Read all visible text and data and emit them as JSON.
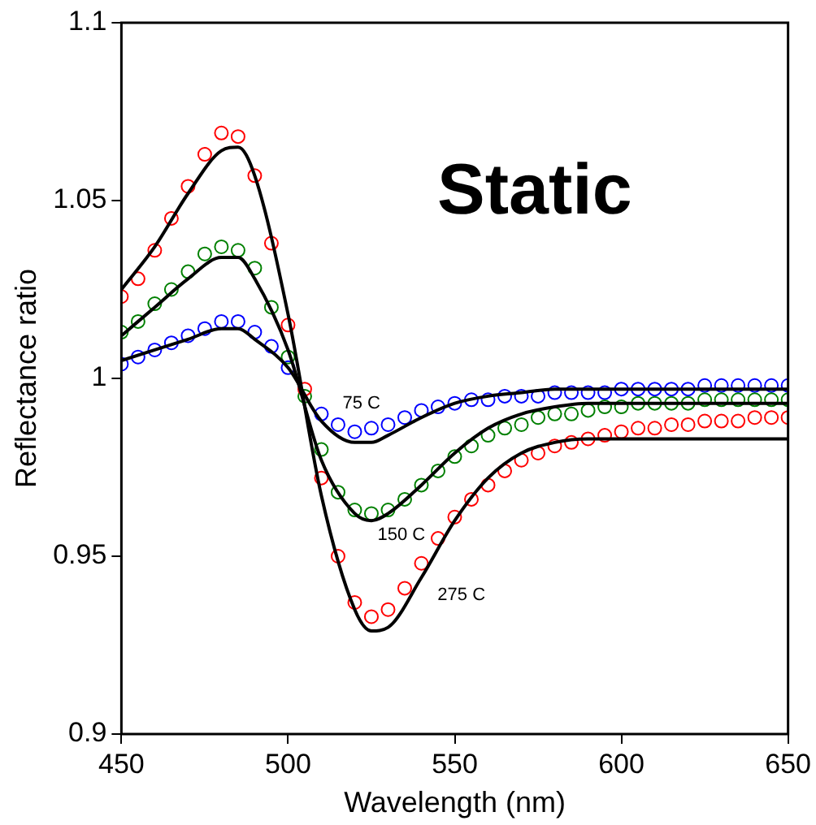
{
  "chart_data": {
    "type": "scatter",
    "xlabel": "Wavelength (nm)",
    "ylabel": "Reflectance ratio",
    "xlim": [
      450,
      650
    ],
    "xticks": [
      450,
      500,
      550,
      600,
      650
    ],
    "ylim": [
      0.9,
      1.1
    ],
    "yticks": [
      0.9,
      0.95,
      1,
      1.05,
      1.1
    ],
    "grid": false,
    "legend": false,
    "x": [
      450,
      455,
      460,
      465,
      470,
      475,
      480,
      485,
      490,
      495,
      500,
      505,
      510,
      515,
      520,
      525,
      530,
      535,
      540,
      545,
      550,
      555,
      560,
      565,
      570,
      575,
      580,
      585,
      590,
      595,
      600,
      605,
      610,
      615,
      620,
      625,
      630,
      635,
      640,
      645,
      650
    ],
    "series": [
      {
        "type": "scatter",
        "marker": "circle",
        "color": "#ff0000",
        "values": [
          1.023,
          1.028,
          1.036,
          1.045,
          1.054,
          1.063,
          1.069,
          1.068,
          1.057,
          1.038,
          1.015,
          0.997,
          0.972,
          0.95,
          0.937,
          0.933,
          0.935,
          0.941,
          0.948,
          0.955,
          0.961,
          0.966,
          0.97,
          0.974,
          0.977,
          0.979,
          0.981,
          0.982,
          0.983,
          0.984,
          0.985,
          0.986,
          0.986,
          0.987,
          0.987,
          0.988,
          0.988,
          0.988,
          0.989,
          0.989,
          0.989
        ]
      },
      {
        "type": "scatter",
        "marker": "circle",
        "color": "#008000",
        "values": [
          1.013,
          1.016,
          1.021,
          1.025,
          1.03,
          1.035,
          1.037,
          1.036,
          1.031,
          1.02,
          1.006,
          0.995,
          0.98,
          0.968,
          0.963,
          0.962,
          0.963,
          0.966,
          0.97,
          0.974,
          0.978,
          0.981,
          0.984,
          0.986,
          0.987,
          0.989,
          0.99,
          0.99,
          0.991,
          0.992,
          0.992,
          0.993,
          0.993,
          0.993,
          0.993,
          0.994,
          0.994,
          0.994,
          0.994,
          0.994,
          0.994
        ]
      },
      {
        "type": "scatter",
        "marker": "circle",
        "color": "#0000ff",
        "values": [
          1.004,
          1.006,
          1.008,
          1.01,
          1.012,
          1.014,
          1.016,
          1.016,
          1.013,
          1.009,
          1.003,
          null,
          0.99,
          0.987,
          0.985,
          0.986,
          0.987,
          0.989,
          0.991,
          0.992,
          0.993,
          0.994,
          0.994,
          0.995,
          0.995,
          0.995,
          0.996,
          0.996,
          0.996,
          0.996,
          0.997,
          0.997,
          0.997,
          0.997,
          0.997,
          0.998,
          0.998,
          0.998,
          0.998,
          0.998,
          0.998
        ]
      },
      {
        "type": "line",
        "marker": "none",
        "color": "#000000",
        "x": [
          450,
          460,
          470,
          480,
          485,
          490,
          500,
          510,
          520,
          525,
          530,
          540,
          550,
          560,
          570,
          580,
          590,
          600,
          650
        ],
        "values": [
          1.025,
          1.037,
          1.052,
          1.064,
          1.065,
          1.057,
          1.018,
          0.967,
          0.935,
          0.929,
          0.93,
          0.944,
          0.96,
          0.972,
          0.979,
          0.982,
          0.983,
          0.983,
          0.983
        ]
      },
      {
        "type": "line",
        "marker": "none",
        "color": "#000000",
        "x": [
          450,
          460,
          470,
          480,
          485,
          490,
          500,
          510,
          520,
          525,
          530,
          540,
          550,
          560,
          570,
          580,
          590,
          600,
          650
        ],
        "values": [
          1.012,
          1.02,
          1.028,
          1.034,
          1.034,
          1.028,
          1.008,
          0.977,
          0.962,
          0.96,
          0.962,
          0.97,
          0.979,
          0.986,
          0.99,
          0.992,
          0.993,
          0.993,
          0.993
        ]
      },
      {
        "type": "line",
        "marker": "none",
        "color": "#000000",
        "x": [
          450,
          460,
          470,
          480,
          485,
          490,
          500,
          510,
          520,
          525,
          530,
          540,
          550,
          560,
          570,
          580,
          650
        ],
        "values": [
          1.005,
          1.008,
          1.011,
          1.014,
          1.014,
          1.011,
          1.003,
          0.988,
          0.982,
          0.982,
          0.984,
          0.989,
          0.993,
          0.995,
          0.996,
          0.997,
          0.997
        ]
      }
    ],
    "annotations": [
      "Static",
      "75 C",
      "150 C",
      "275 C"
    ]
  }
}
